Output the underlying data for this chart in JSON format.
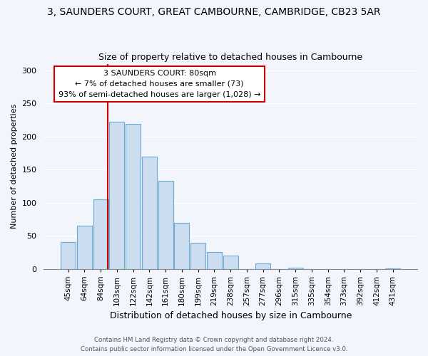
{
  "title": "3, SAUNDERS COURT, GREAT CAMBOURNE, CAMBRIDGE, CB23 5AR",
  "subtitle": "Size of property relative to detached houses in Cambourne",
  "xlabel": "Distribution of detached houses by size in Cambourne",
  "ylabel": "Number of detached properties",
  "bar_labels": [
    "45sqm",
    "64sqm",
    "84sqm",
    "103sqm",
    "122sqm",
    "142sqm",
    "161sqm",
    "180sqm",
    "199sqm",
    "219sqm",
    "238sqm",
    "257sqm",
    "277sqm",
    "296sqm",
    "315sqm",
    "335sqm",
    "354sqm",
    "373sqm",
    "392sqm",
    "412sqm",
    "431sqm"
  ],
  "bar_values": [
    40,
    65,
    105,
    222,
    219,
    170,
    133,
    69,
    39,
    25,
    20,
    0,
    8,
    0,
    2,
    0,
    0,
    0,
    0,
    0,
    1
  ],
  "bar_color": "#ccddf0",
  "bar_edge_color": "#6aaad4",
  "annotation_text_line1": "3 SAUNDERS COURT: 80sqm",
  "annotation_text_line2": "← 7% of detached houses are smaller (73)",
  "annotation_text_line3": "93% of semi-detached houses are larger (1,028) →",
  "annotation_box_facecolor": "#ffffff",
  "annotation_box_edgecolor": "#cc0000",
  "vline_color": "#cc0000",
  "vline_x_index": 2,
  "ylim": [
    0,
    310
  ],
  "yticks": [
    0,
    50,
    100,
    150,
    200,
    250,
    300
  ],
  "footer_line1": "Contains HM Land Registry data © Crown copyright and database right 2024.",
  "footer_line2": "Contains public sector information licensed under the Open Government Licence v3.0.",
  "background_color": "#f2f5fb",
  "plot_background": "#f2f5fb",
  "grid_color": "#ffffff",
  "title_fontsize": 10,
  "subtitle_fontsize": 9
}
